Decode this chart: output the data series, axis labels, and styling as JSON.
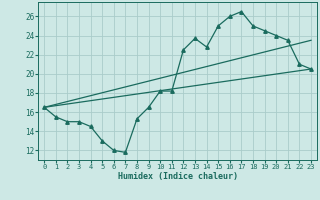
{
  "xlabel": "Humidex (Indice chaleur)",
  "bg_color": "#cde8e5",
  "grid_color": "#aaccca",
  "line_color": "#1a6b5e",
  "xlim": [
    -0.5,
    23.5
  ],
  "ylim": [
    11.0,
    27.5
  ],
  "yticks": [
    12,
    14,
    16,
    18,
    20,
    22,
    24,
    26
  ],
  "xticks": [
    0,
    1,
    2,
    3,
    4,
    5,
    6,
    7,
    8,
    9,
    10,
    11,
    12,
    13,
    14,
    15,
    16,
    17,
    18,
    19,
    20,
    21,
    22,
    23
  ],
  "line1_x": [
    0,
    1,
    2,
    3,
    4,
    5,
    6,
    7,
    8,
    9,
    10,
    11,
    12,
    13,
    14,
    15,
    16,
    17,
    18,
    19,
    20,
    21,
    22,
    23
  ],
  "line1_y": [
    16.5,
    15.5,
    15.0,
    15.0,
    14.5,
    13.0,
    12.0,
    11.8,
    15.3,
    16.5,
    18.2,
    18.2,
    22.5,
    23.7,
    22.8,
    25.0,
    26.0,
    26.5,
    25.0,
    24.5,
    24.0,
    23.5,
    21.0,
    20.5
  ],
  "line2_x": [
    0,
    23
  ],
  "line2_y": [
    16.5,
    20.5
  ],
  "line3_x": [
    0,
    23
  ],
  "line3_y": [
    16.5,
    23.5
  ]
}
